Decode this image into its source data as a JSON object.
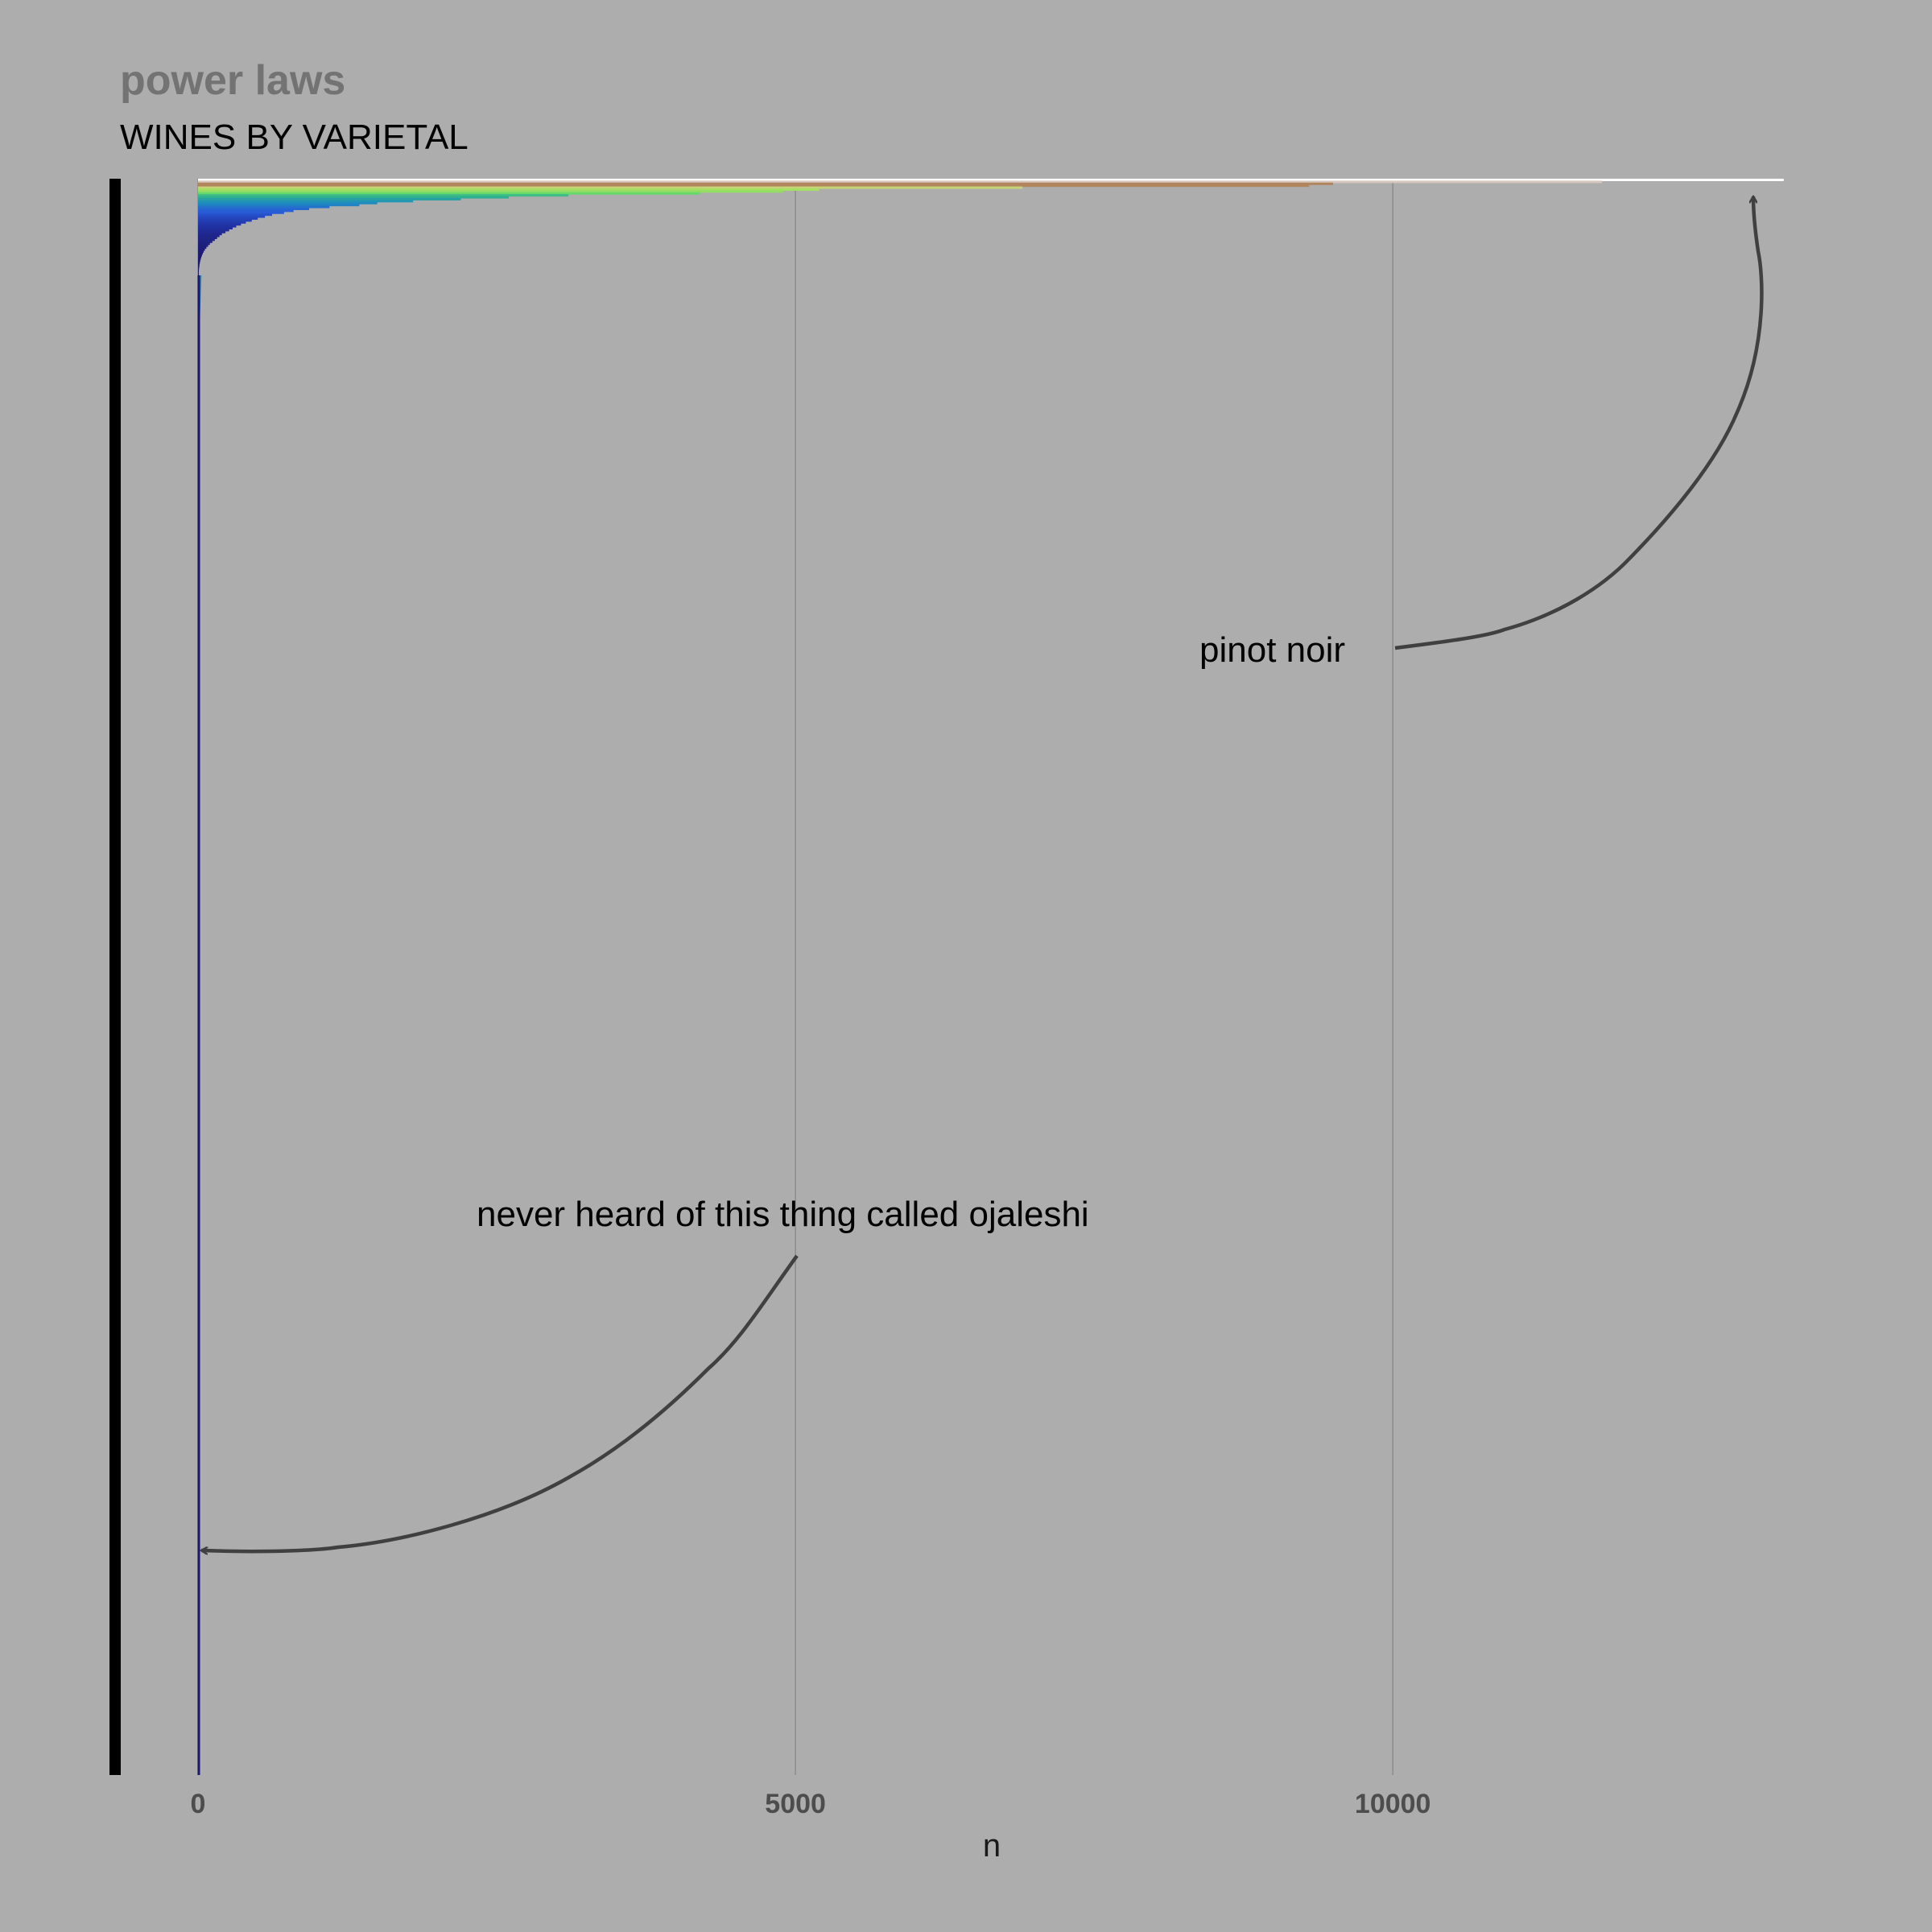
{
  "title": "power laws",
  "subtitle": "WINES BY VARIETAL",
  "colors": {
    "background": "#adadad",
    "gridline": "#8c8c8c",
    "arrow": "#404040",
    "top_line": "#ffffff",
    "y_axis_bar": "#000000"
  },
  "chart_data": {
    "type": "bar",
    "orientation": "horizontal",
    "sorted": "ascending",
    "title": "power laws",
    "subtitle": "WINES BY VARIETAL",
    "xlabel": "n",
    "ylabel": "",
    "xlim": [
      0,
      13300
    ],
    "x_ticks": [
      0,
      5000,
      10000
    ],
    "x_tick_labels": [
      "0",
      "5000",
      "10000"
    ],
    "grid": {
      "vertical": true,
      "horizontal": false
    },
    "legend": "none",
    "color_scale": "n (dark blue → blue → teal → green → yellow → brown → white)",
    "bars_top_ranked_n": [
      13272,
      11750,
      9500,
      9300,
      6900,
      5200,
      4900,
      4200,
      3100,
      2600,
      2200,
      1800,
      1500,
      1350,
      1100,
      930,
      800,
      720,
      620,
      560,
      500,
      450,
      400,
      360,
      320,
      290,
      260,
      230,
      200,
      180,
      160,
      140,
      120,
      100,
      85,
      70,
      58,
      48,
      40,
      33,
      27,
      22,
      18,
      15,
      12,
      10,
      8,
      6,
      5,
      4,
      3,
      2,
      1
    ],
    "long_tail_min_n": 1,
    "annotations": [
      {
        "text": "pinot noir",
        "target": "largest varietal (n ≈ 13272)"
      },
      {
        "text": "never heard of this thing called ojaleshi",
        "target": "a varietal with n ≈ 1"
      }
    ]
  }
}
